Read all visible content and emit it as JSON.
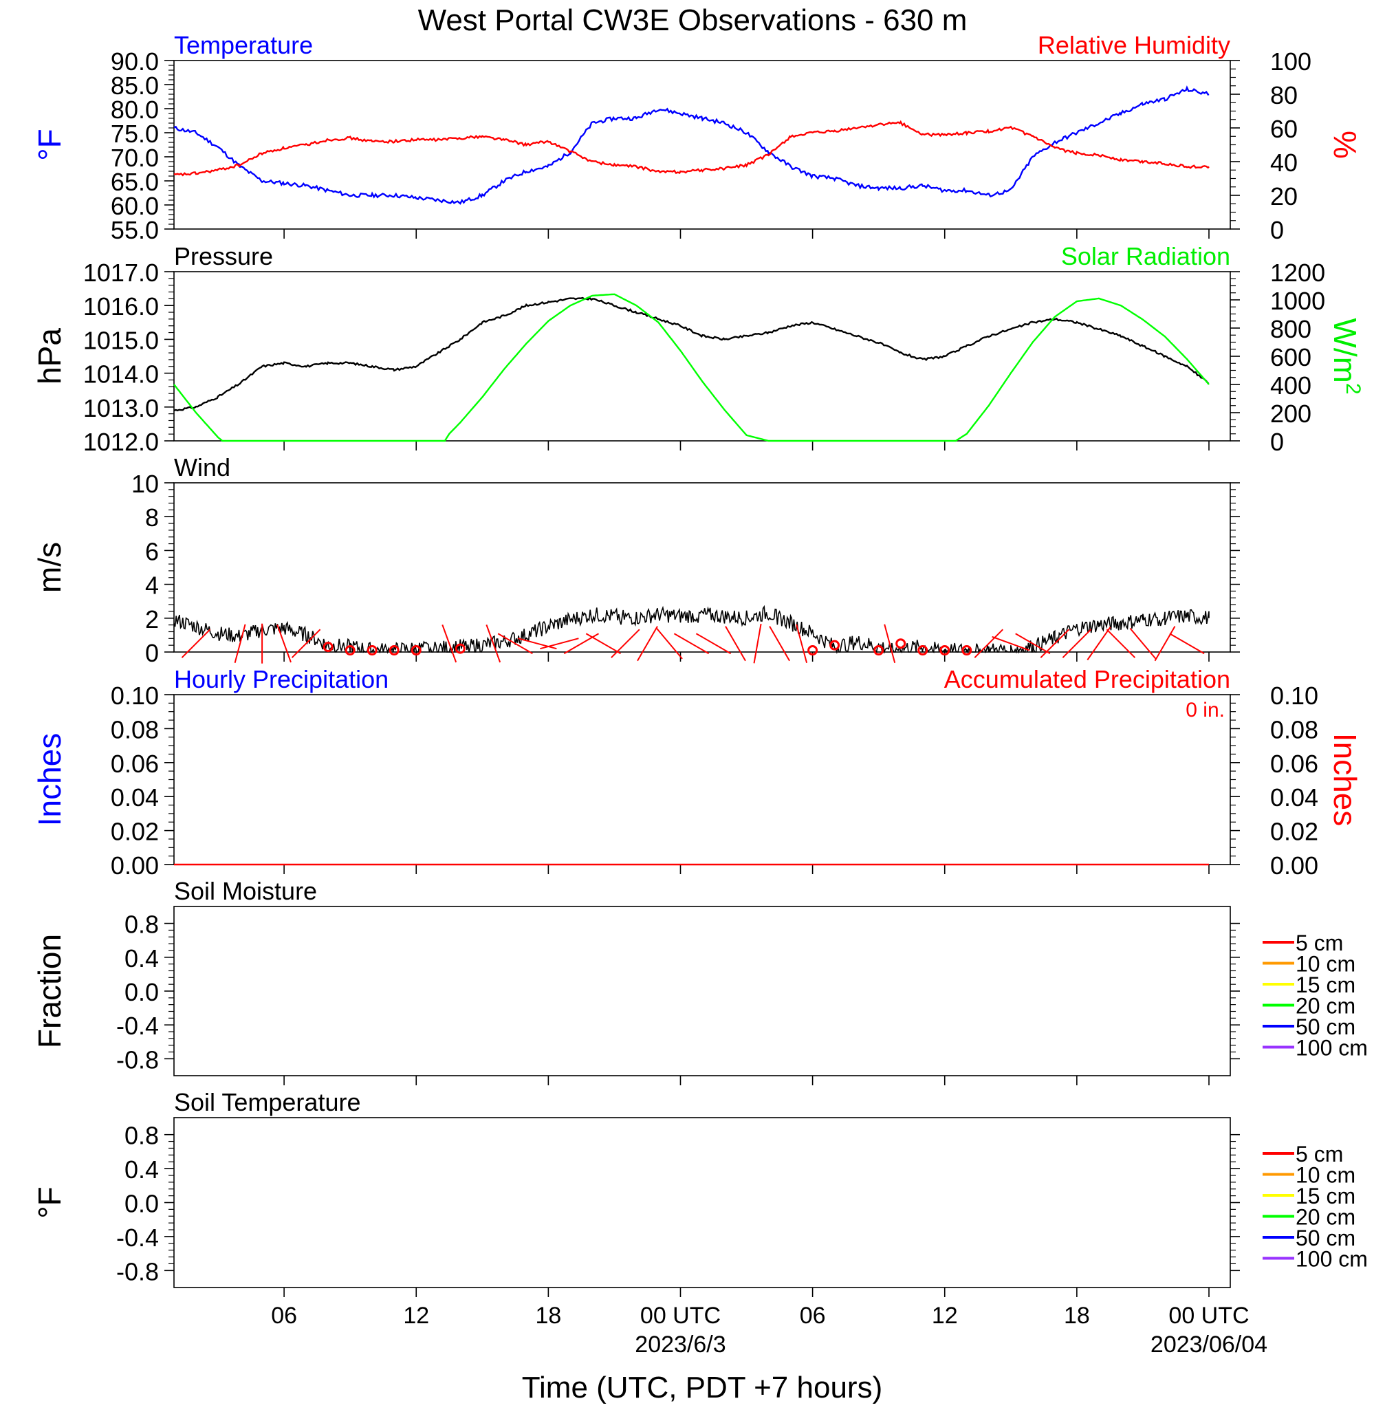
{
  "title": "West Portal CW3E Observations - 630 m",
  "x_axis": {
    "tick_labels": [
      "06",
      "12",
      "18",
      "00 UTC",
      "06",
      "12",
      "18",
      "00 UTC"
    ],
    "date_labels": [
      "2023/6/3",
      "2023/06/04"
    ],
    "xlabel": "Time (UTC, PDT +7 hours)"
  },
  "chart_data": [
    {
      "type": "line",
      "title_left": "Temperature",
      "title_right": "Relative Humidity",
      "ylabel_left": "°F",
      "ylabel_right": "%",
      "ylim_left": [
        55,
        90
      ],
      "ylim_right": [
        0,
        100
      ],
      "yticks_left": [
        "90.0",
        "85.0",
        "80.0",
        "75.0",
        "70.0",
        "65.0",
        "60.0",
        "55.0"
      ],
      "yticks_right": [
        "100",
        "80",
        "60",
        "40",
        "20",
        "0"
      ],
      "x_hours": [
        0,
        1,
        2,
        3,
        4,
        5,
        6,
        7,
        8,
        9,
        10,
        11,
        12,
        13,
        14,
        15,
        16,
        17,
        18,
        19,
        20,
        21,
        22,
        23,
        24,
        25,
        26,
        27,
        28,
        29,
        30,
        31,
        32,
        33,
        34,
        35,
        36,
        37,
        38,
        39,
        40,
        41,
        42,
        43,
        44,
        45,
        46,
        47
      ],
      "series": [
        {
          "name": "Temperature",
          "axis": "left",
          "color": "#0000ff",
          "values": [
            76,
            75,
            72,
            68,
            65,
            64.5,
            64,
            63,
            62,
            62,
            62,
            61.5,
            61,
            60.5,
            62,
            65,
            67,
            68,
            71,
            77,
            78,
            78,
            80,
            79,
            78,
            77,
            75,
            71,
            68,
            66,
            65.5,
            64,
            63.5,
            63.5,
            64,
            63,
            63,
            62,
            63,
            70,
            73,
            75,
            77,
            79,
            81,
            82,
            84,
            83
          ]
        },
        {
          "name": "Relative Humidity",
          "axis": "right",
          "color": "#ff0000",
          "values": [
            32,
            33,
            35,
            38,
            45,
            48,
            50,
            53,
            54,
            52,
            52,
            53,
            53,
            54,
            55,
            53,
            50,
            52,
            46,
            40,
            38,
            37,
            34,
            34,
            35,
            36,
            38,
            44,
            55,
            57,
            58,
            60,
            62,
            63,
            56,
            56,
            57,
            58,
            60,
            55,
            48,
            45,
            44,
            41,
            40,
            39,
            37,
            37
          ]
        }
      ]
    },
    {
      "type": "line",
      "title_left": "Pressure",
      "title_right": "Solar Radiation",
      "ylabel_left": "hPa",
      "ylabel_right": "W/m",
      "ylabel_right_sup": "2",
      "ylim_left": [
        1012,
        1017
      ],
      "ylim_right": [
        0,
        1200
      ],
      "yticks_left": [
        "1017.0",
        "1016.0",
        "1015.0",
        "1014.0",
        "1013.0",
        "1012.0"
      ],
      "yticks_right": [
        "1200",
        "1000",
        "800",
        "600",
        "400",
        "200",
        "0"
      ],
      "series": [
        {
          "name": "Pressure",
          "axis": "left",
          "color": "#000000",
          "x_hours": [
            0,
            1,
            2,
            3,
            4,
            5,
            6,
            7,
            8,
            9,
            10,
            11,
            12,
            13,
            14,
            15,
            16,
            17,
            18,
            19,
            20,
            21,
            22,
            23,
            24,
            25,
            26,
            27,
            28,
            29,
            30,
            31,
            32,
            33,
            34,
            35,
            36,
            37,
            38,
            39,
            40,
            41,
            42,
            43,
            44,
            45,
            46,
            47
          ],
          "values": [
            1012.9,
            1013.0,
            1013.3,
            1013.7,
            1014.2,
            1014.3,
            1014.2,
            1014.3,
            1014.3,
            1014.2,
            1014.1,
            1014.2,
            1014.6,
            1015.0,
            1015.5,
            1015.7,
            1016.0,
            1016.1,
            1016.2,
            1016.2,
            1016.0,
            1015.8,
            1015.6,
            1015.4,
            1015.1,
            1015.0,
            1015.1,
            1015.2,
            1015.4,
            1015.5,
            1015.3,
            1015.1,
            1014.9,
            1014.6,
            1014.4,
            1014.5,
            1014.8,
            1015.1,
            1015.3,
            1015.5,
            1015.6,
            1015.5,
            1015.3,
            1015.1,
            1014.8,
            1014.5,
            1014.2,
            1013.7
          ]
        },
        {
          "name": "Solar Radiation",
          "axis": "right",
          "color": "#00ff00",
          "x_hours": [
            0,
            1,
            2,
            2.2,
            12.3,
            12.5,
            13,
            14,
            15,
            16,
            17,
            18,
            19,
            20,
            21,
            22,
            23,
            24,
            25,
            26,
            27,
            27.5,
            35.5,
            36,
            37,
            38,
            39,
            40,
            41,
            42,
            43,
            44,
            45,
            46,
            47
          ],
          "values": [
            400,
            200,
            25,
            0,
            0,
            50,
            130,
            310,
            510,
            690,
            850,
            960,
            1030,
            1040,
            960,
            840,
            640,
            420,
            220,
            40,
            0,
            0,
            0,
            50,
            250,
            480,
            700,
            880,
            990,
            1010,
            960,
            860,
            740,
            580,
            400
          ]
        }
      ]
    },
    {
      "type": "line",
      "title_left": "Wind",
      "ylabel_left": "m/s",
      "ylim_left": [
        0,
        10
      ],
      "yticks_left": [
        "10",
        "8",
        "6",
        "4",
        "2",
        "0"
      ],
      "x_hours": [
        0,
        1,
        2,
        3,
        4,
        5,
        6,
        7,
        8,
        9,
        10,
        11,
        12,
        13,
        14,
        15,
        16,
        17,
        18,
        19,
        20,
        21,
        22,
        23,
        24,
        25,
        26,
        27,
        28,
        29,
        30,
        31,
        32,
        33,
        34,
        35,
        36,
        37,
        38,
        39,
        40,
        41,
        42,
        43,
        44,
        45,
        46,
        47
      ],
      "series": [
        {
          "name": "Wind speed",
          "color": "#000000",
          "values": [
            1.9,
            1.5,
            1.1,
            0.9,
            1.3,
            1.4,
            1.0,
            0.4,
            0.3,
            0.1,
            0.1,
            0.2,
            0.2,
            0.3,
            0.4,
            0.6,
            1.0,
            1.5,
            1.9,
            2.2,
            2.1,
            2.0,
            2.2,
            2.1,
            2.2,
            2.1,
            2.0,
            2.3,
            1.7,
            1.1,
            0.3,
            0.6,
            0.3,
            0.2,
            0.3,
            0.1,
            0.1,
            0.1,
            0.1,
            0.3,
            0.8,
            1.4,
            1.6,
            1.7,
            1.9,
            2.0,
            2.1,
            2.0
          ]
        }
      ],
      "calm_markers_hours": [
        7,
        8,
        9,
        10,
        11,
        13,
        29,
        30,
        32,
        33,
        34,
        35,
        36
      ],
      "calm_markers_speed": [
        0.3,
        0.1,
        0.1,
        0.1,
        0.1,
        0.2,
        0.1,
        0.4,
        0.1,
        0.5,
        0.1,
        0.1,
        0.1
      ],
      "wind_barbs": {
        "color": "#ff0000",
        "x_hours": [
          1,
          3,
          4,
          5,
          6,
          12.5,
          14.5,
          15.5,
          16.5,
          17.5,
          18.5,
          19.5,
          20.5,
          21.5,
          22.5,
          23.5,
          24.5,
          25.5,
          26.5,
          27.5,
          28.5,
          32.5,
          37,
          38,
          39,
          40,
          41,
          42,
          43,
          44,
          45,
          46
        ],
        "direction_deg": [
          225,
          195,
          180,
          160,
          225,
          340,
          340,
          300,
          285,
          255,
          240,
          300,
          225,
          210,
          320,
          300,
          300,
          330,
          190,
          330,
          345,
          345,
          225,
          290,
          300,
          225,
          225,
          215,
          315,
          320,
          210,
          300
        ]
      }
    },
    {
      "type": "line",
      "title_left": "Hourly Precipitation",
      "title_right": "Accumulated Precipitation",
      "annotation": "0 in.",
      "ylabel_left": "Inches",
      "ylabel_right": "Inches",
      "ylim_left": [
        0,
        0.1
      ],
      "ylim_right": [
        0,
        0.1
      ],
      "yticks_left": [
        "0.10",
        "0.08",
        "0.06",
        "0.04",
        "0.02",
        "0.00"
      ],
      "yticks_right": [
        "0.10",
        "0.08",
        "0.06",
        "0.04",
        "0.02",
        "0.00"
      ],
      "series": [
        {
          "name": "Accumulated Precipitation",
          "color": "#ff0000",
          "x_hours": [
            0,
            47
          ],
          "values": [
            0,
            0
          ]
        }
      ]
    },
    {
      "type": "line",
      "title_left": "Soil Moisture",
      "ylabel_left": "Fraction",
      "ylim_left": [
        -1,
        1
      ],
      "yticks_left": [
        "0.8",
        "0.4",
        "0.0",
        "-0.4",
        "-0.8"
      ],
      "legend": [
        {
          "label": "5 cm",
          "color": "#ff0000"
        },
        {
          "label": "10 cm",
          "color": "#ff9900"
        },
        {
          "label": "15 cm",
          "color": "#ffff00"
        },
        {
          "label": "20 cm",
          "color": "#00ff00"
        },
        {
          "label": "50 cm",
          "color": "#0000ff"
        },
        {
          "label": "100 cm",
          "color": "#9933ff"
        }
      ],
      "series": []
    },
    {
      "type": "line",
      "title_left": "Soil Temperature",
      "ylabel_left": "°F",
      "ylim_left": [
        -1,
        1
      ],
      "yticks_left": [
        "0.8",
        "0.4",
        "0.0",
        "-0.4",
        "-0.8"
      ],
      "legend": [
        {
          "label": "5 cm",
          "color": "#ff0000"
        },
        {
          "label": "10 cm",
          "color": "#ff9900"
        },
        {
          "label": "15 cm",
          "color": "#ffff00"
        },
        {
          "label": "20 cm",
          "color": "#00ff00"
        },
        {
          "label": "50 cm",
          "color": "#0000ff"
        },
        {
          "label": "100 cm",
          "color": "#9933ff"
        }
      ],
      "series": []
    }
  ]
}
